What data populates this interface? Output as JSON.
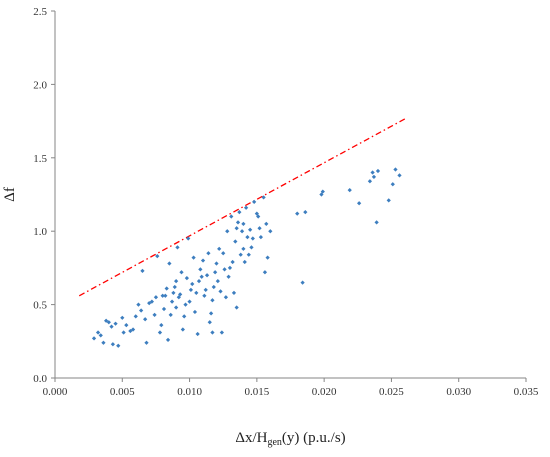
{
  "chart_data": {
    "type": "scatter",
    "title": "",
    "xlabel_main": "Δx/H",
    "xlabel_sub": "gen",
    "xlabel_tail": "(y) (p.u./s)",
    "ylabel": "Δf",
    "xlim": [
      0,
      0.035
    ],
    "ylim": [
      0,
      2.5
    ],
    "x_ticks": [
      "0.000",
      "0.005",
      "0.010",
      "0.015",
      "0.020",
      "0.025",
      "0.030",
      "0.035"
    ],
    "y_ticks": [
      "0.0",
      "0.5",
      "1.0",
      "1.5",
      "2.0",
      "2.5"
    ],
    "grid": false,
    "legend": "none",
    "series": [
      {
        "kind": "points",
        "color": "#3d7ebf",
        "points": [
          [
            0.0029,
            0.27
          ],
          [
            0.0032,
            0.31
          ],
          [
            0.0034,
            0.29
          ],
          [
            0.0036,
            0.24
          ],
          [
            0.0038,
            0.39
          ],
          [
            0.004,
            0.38
          ],
          [
            0.0042,
            0.35
          ],
          [
            0.0043,
            0.23
          ],
          [
            0.0045,
            0.37
          ],
          [
            0.0047,
            0.22
          ],
          [
            0.005,
            0.41
          ],
          [
            0.0051,
            0.31
          ],
          [
            0.0053,
            0.36
          ],
          [
            0.0056,
            0.32
          ],
          [
            0.0058,
            0.33
          ],
          [
            0.006,
            0.42
          ],
          [
            0.0062,
            0.5
          ],
          [
            0.0064,
            0.46
          ],
          [
            0.0065,
            0.73
          ],
          [
            0.0067,
            0.4
          ],
          [
            0.0068,
            0.24
          ],
          [
            0.007,
            0.51
          ],
          [
            0.0072,
            0.52
          ],
          [
            0.0074,
            0.43
          ],
          [
            0.0075,
            0.55
          ],
          [
            0.0076,
            0.83
          ],
          [
            0.0078,
            0.31
          ],
          [
            0.0079,
            0.36
          ],
          [
            0.008,
            0.56
          ],
          [
            0.0081,
            0.47
          ],
          [
            0.0082,
            0.56
          ],
          [
            0.0083,
            0.61
          ],
          [
            0.0084,
            0.26
          ],
          [
            0.0085,
            0.78
          ],
          [
            0.0086,
            0.43
          ],
          [
            0.0087,
            0.52
          ],
          [
            0.0088,
            0.58
          ],
          [
            0.0089,
            0.62
          ],
          [
            0.009,
            0.66
          ],
          [
            0.009,
            0.48
          ],
          [
            0.0091,
            0.89
          ],
          [
            0.0092,
            0.55
          ],
          [
            0.0093,
            0.57
          ],
          [
            0.0094,
            0.72
          ],
          [
            0.0095,
            0.33
          ],
          [
            0.0096,
            0.42
          ],
          [
            0.0097,
            0.5
          ],
          [
            0.0098,
            0.68
          ],
          [
            0.0099,
            0.95
          ],
          [
            0.01,
            0.52
          ],
          [
            0.0101,
            0.6
          ],
          [
            0.0102,
            0.64
          ],
          [
            0.0103,
            0.82
          ],
          [
            0.0104,
            0.45
          ],
          [
            0.0105,
            0.58
          ],
          [
            0.0106,
            0.3
          ],
          [
            0.0107,
            0.66
          ],
          [
            0.0108,
            0.74
          ],
          [
            0.0109,
            0.69
          ],
          [
            0.011,
            0.8
          ],
          [
            0.0111,
            0.56
          ],
          [
            0.0112,
            0.6
          ],
          [
            0.0113,
            0.7
          ],
          [
            0.0114,
            0.85
          ],
          [
            0.0115,
            0.38
          ],
          [
            0.0116,
            0.44
          ],
          [
            0.0117,
            0.53
          ],
          [
            0.0117,
            0.31
          ],
          [
            0.0118,
            0.62
          ],
          [
            0.0119,
            0.72
          ],
          [
            0.012,
            0.78
          ],
          [
            0.0121,
            0.66
          ],
          [
            0.0122,
            0.88
          ],
          [
            0.0123,
            0.59
          ],
          [
            0.0124,
            0.31
          ],
          [
            0.0125,
            0.85
          ],
          [
            0.0126,
            0.74
          ],
          [
            0.0127,
            0.55
          ],
          [
            0.0128,
            1.0
          ],
          [
            0.0129,
            0.69
          ],
          [
            0.013,
            0.75
          ],
          [
            0.0131,
            1.1
          ],
          [
            0.0132,
            0.79
          ],
          [
            0.0133,
            0.58
          ],
          [
            0.0134,
            0.93
          ],
          [
            0.0135,
            1.02
          ],
          [
            0.0135,
            0.48
          ],
          [
            0.0136,
            1.06
          ],
          [
            0.0137,
            1.13
          ],
          [
            0.0138,
            0.84
          ],
          [
            0.0139,
            1.0
          ],
          [
            0.014,
            0.88
          ],
          [
            0.014,
            1.05
          ],
          [
            0.0141,
            0.79
          ],
          [
            0.0142,
            1.16
          ],
          [
            0.0143,
            0.96
          ],
          [
            0.0144,
            0.84
          ],
          [
            0.0145,
            1.01
          ],
          [
            0.0146,
            0.89
          ],
          [
            0.0147,
            0.95
          ],
          [
            0.0148,
            1.2
          ],
          [
            0.015,
            1.12
          ],
          [
            0.0151,
            1.1
          ],
          [
            0.0152,
            1.02
          ],
          [
            0.0153,
            0.96
          ],
          [
            0.0155,
            1.23
          ],
          [
            0.0156,
            0.72
          ],
          [
            0.0157,
            1.05
          ],
          [
            0.0158,
            0.82
          ],
          [
            0.016,
            1.0
          ],
          [
            0.018,
            1.12
          ],
          [
            0.0184,
            0.65
          ],
          [
            0.0186,
            1.13
          ],
          [
            0.0198,
            1.25
          ],
          [
            0.0199,
            1.27
          ],
          [
            0.0219,
            1.28
          ],
          [
            0.0226,
            1.19
          ],
          [
            0.0234,
            1.34
          ],
          [
            0.0236,
            1.4
          ],
          [
            0.0237,
            1.37
          ],
          [
            0.0239,
            1.06
          ],
          [
            0.024,
            1.41
          ],
          [
            0.0248,
            1.21
          ],
          [
            0.0251,
            1.32
          ],
          [
            0.0253,
            1.42
          ],
          [
            0.0256,
            1.38
          ]
        ]
      },
      {
        "kind": "line",
        "color": "#ff0000",
        "points": [
          [
            0.0018,
            0.56
          ],
          [
            0.0261,
            1.77
          ]
        ]
      }
    ]
  }
}
